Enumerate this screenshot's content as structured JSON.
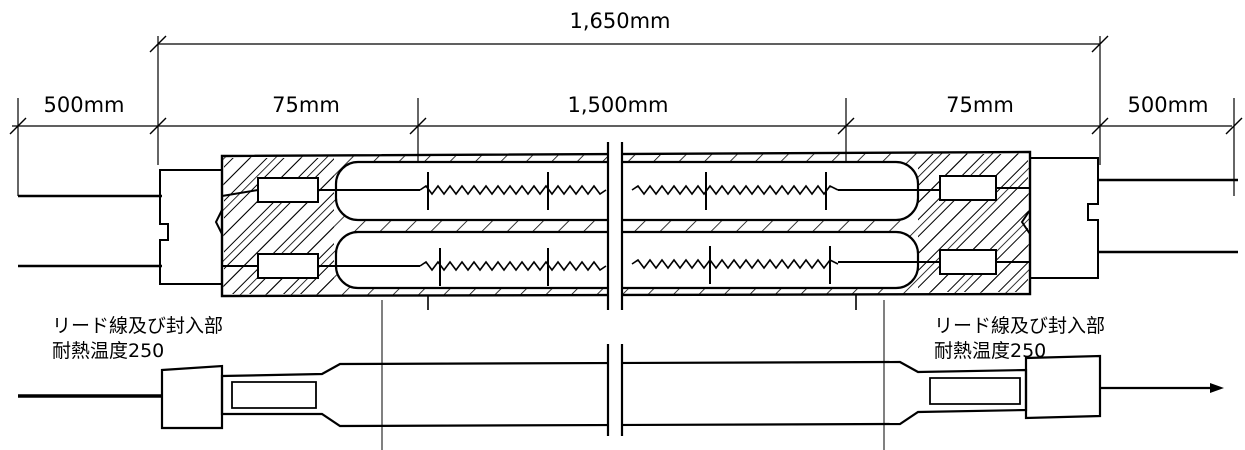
{
  "dimensions": {
    "total": "1,650mm",
    "lead_left": "500mm",
    "end_left": "75mm",
    "heated": "1,500mm",
    "end_right": "75mm",
    "lead_right": "500mm"
  },
  "notes": {
    "left_line1": "リード線及び封入部",
    "left_line2": "耐熱温度250",
    "right_line1": "リード線及び封入部",
    "right_line2": "耐熱温度250"
  }
}
